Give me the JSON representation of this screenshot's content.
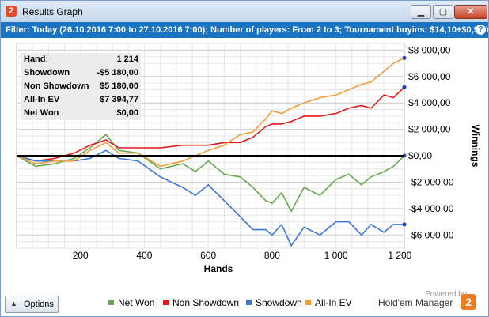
{
  "window": {
    "title": "Results Graph",
    "logo_char": "2",
    "minimize": "▁",
    "maximize": "▢",
    "close": "✕"
  },
  "filter": {
    "text": "Filter: Today (26.10.2016 7:00 to 27.10.2016 7:00); Number of players: From 2 to 3; Tournament buyins: $14,10+$0,90 V",
    "help": "?"
  },
  "stats": [
    {
      "key": "Hand:",
      "value": "1 214"
    },
    {
      "key": "Showdown",
      "value": "-$5 180,00"
    },
    {
      "key": "Non Showdown",
      "value": "$5 180,00"
    },
    {
      "key": "All-In EV",
      "value": "$7 394,77"
    },
    {
      "key": "Net Won",
      "value": "$0,00"
    }
  ],
  "options": {
    "label": "Options",
    "arrow": "▲"
  },
  "powered": {
    "text": "Powered by",
    "brand": "Hold'em Manager",
    "logo_char": "2"
  },
  "chart_data": {
    "type": "line",
    "xlabel": "Hands",
    "ylabel": "Winnings",
    "xlim": [
      0,
      1214
    ],
    "ylim": [
      -7000,
      8500
    ],
    "x_ticks": [
      200,
      400,
      600,
      800,
      1000,
      1200
    ],
    "x_tick_labels": [
      "200",
      "400",
      "600",
      "800",
      "1 000",
      "1 200"
    ],
    "y_ticks": [
      -6000,
      -4000,
      -2000,
      0,
      2000,
      4000,
      6000,
      8000
    ],
    "y_tick_labels": [
      "-$6 000,00",
      "-$4 000,00",
      "-$2 000,00",
      "$0,00",
      "$2 000,00",
      "$4 000,00",
      "$6 000,00",
      "$8 000,00"
    ],
    "grid": true,
    "legend_position": "bottom",
    "series": [
      {
        "name": "Net Won",
        "color": "#6aa84f",
        "x": [
          0,
          60,
          120,
          180,
          230,
          280,
          320,
          380,
          450,
          520,
          560,
          600,
          650,
          700,
          740,
          780,
          800,
          830,
          860,
          900,
          950,
          1000,
          1040,
          1080,
          1110,
          1150,
          1180,
          1214
        ],
        "values": [
          0,
          -800,
          -600,
          -200,
          600,
          1600,
          400,
          200,
          -1000,
          -600,
          -1200,
          -400,
          -1400,
          -1600,
          -2400,
          -3400,
          -3600,
          -2800,
          -4200,
          -2400,
          -3000,
          -1800,
          -1400,
          -2200,
          -1600,
          -1200,
          -800,
          0
        ]
      },
      {
        "name": "Non Showdown",
        "color": "#e31a1c",
        "x": [
          0,
          60,
          120,
          180,
          230,
          280,
          320,
          380,
          450,
          520,
          560,
          600,
          650,
          700,
          740,
          780,
          800,
          830,
          860,
          900,
          950,
          1000,
          1040,
          1080,
          1110,
          1150,
          1180,
          1214
        ],
        "values": [
          0,
          -400,
          -200,
          200,
          800,
          1200,
          600,
          600,
          600,
          800,
          800,
          800,
          1000,
          1000,
          1400,
          2200,
          2400,
          2400,
          2600,
          3000,
          3000,
          3200,
          3600,
          3800,
          3600,
          4600,
          4400,
          5200
        ]
      },
      {
        "name": "Showdown",
        "color": "#3c78d8",
        "x": [
          0,
          60,
          120,
          180,
          230,
          280,
          320,
          380,
          450,
          520,
          560,
          600,
          650,
          700,
          740,
          780,
          800,
          830,
          860,
          900,
          950,
          1000,
          1040,
          1080,
          1110,
          1150,
          1180,
          1214
        ],
        "values": [
          0,
          -400,
          -400,
          -400,
          -200,
          400,
          -200,
          -400,
          -1600,
          -2400,
          -3000,
          -2200,
          -3400,
          -4600,
          -5600,
          -5600,
          -6000,
          -5200,
          -6800,
          -5400,
          -6000,
          -5000,
          -5000,
          -6000,
          -5200,
          -5800,
          -5200,
          -5200
        ]
      },
      {
        "name": "All-In EV",
        "color": "#f39c3c",
        "x": [
          0,
          60,
          120,
          180,
          230,
          280,
          320,
          380,
          450,
          520,
          560,
          600,
          650,
          700,
          740,
          780,
          800,
          830,
          860,
          900,
          950,
          1000,
          1040,
          1080,
          1110,
          1150,
          1180,
          1214
        ],
        "values": [
          0,
          -600,
          -400,
          -400,
          400,
          1000,
          200,
          200,
          -800,
          -400,
          0,
          400,
          800,
          1600,
          1800,
          2800,
          3400,
          3200,
          3600,
          4000,
          4400,
          4600,
          5000,
          5400,
          5600,
          6400,
          7000,
          7400
        ]
      }
    ]
  }
}
